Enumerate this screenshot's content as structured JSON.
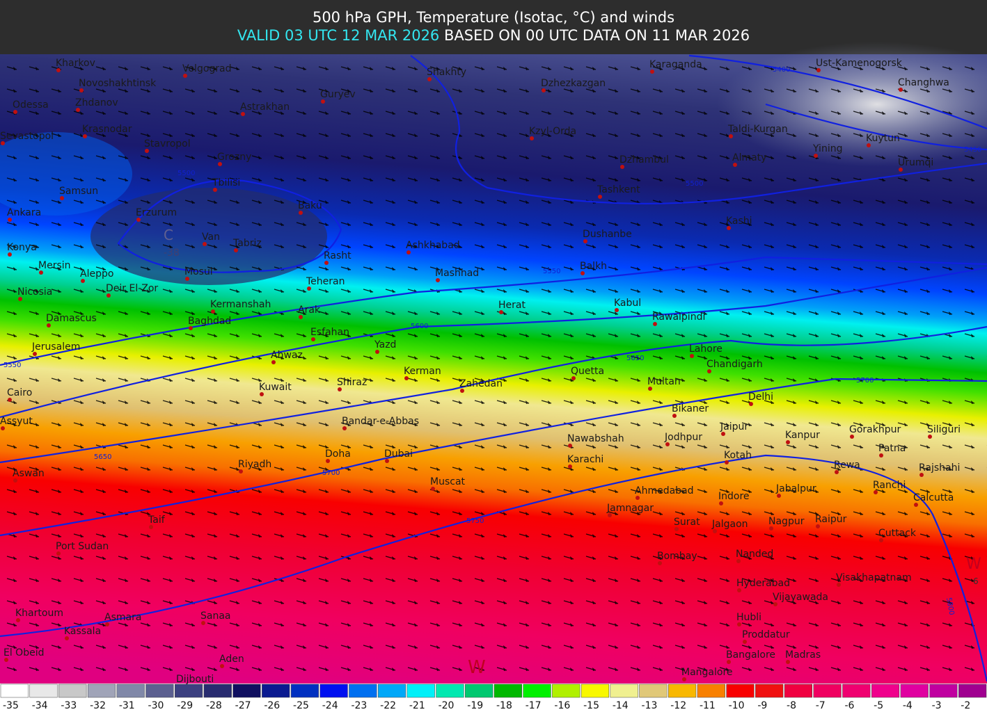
{
  "header": {
    "title": "500 hPa GPH, Temperature (Isotac, °C) and winds",
    "valid": "VALID 03 UTC 12 MAR 2026",
    "based": "BASED ON 00 UTC DATA ON 11 MAR 2026"
  },
  "cities": [
    "Kharkov",
    "Volgograd",
    "Novoshakhtinsk",
    "Zhdanov",
    "Odessa",
    "Krasnodar",
    "Sevastopol",
    "Stavropol",
    "Astrakhan",
    "Grozny",
    "Shakhty",
    "Guryev",
    "Karaganda",
    "Ust-Kamenogorsk",
    "Dzhezkazgan",
    "Changhwa",
    "Kzyl-Orda",
    "Taldi-Kurgan",
    "Yining",
    "Kuytun",
    "Urumqi",
    "Dzhambul",
    "Almaty",
    "Tashkent",
    "Tbilisi",
    "Samsun",
    "Ankara",
    "Erzurum",
    "Baku",
    "Kashi",
    "Konya",
    "Van",
    "Tabriz",
    "Dushanbe",
    "Ashkhabad",
    "Rasht",
    "Mashhad",
    "Mersin",
    "Aleppo",
    "Mosul",
    "Balkh",
    "Deir El-Zor",
    "Teheran",
    "Nicosia",
    "Herat",
    "Kabul",
    "Kermanshah",
    "Arak",
    "Damascus",
    "Baghdad",
    "Rawalpindi",
    "Esfahan",
    "Jerusalem",
    "Yazd",
    "Lahore",
    "Ahwaz",
    "Chandigarh",
    "Kerman",
    "Quetta",
    "Cairo",
    "Kuwait",
    "Shiraz",
    "Zahedan",
    "Multan",
    "Delhi",
    "Bikaner",
    "Assyut",
    "Bandar-e-Abbas",
    "Jaipur",
    "Gorakhpur",
    "Siliguri",
    "Nawabshah",
    "Jodhpur",
    "Kanpur",
    "Patna",
    "Kotah",
    "Riyadh",
    "Doha",
    "Dubai",
    "Karachi",
    "Rewa",
    "Rajshahi",
    "Aswan",
    "Muscat",
    "Ranchi",
    "Ahmedabad",
    "Calcutta",
    "Indore",
    "Jabalpur",
    "Jamnagar",
    "Taif",
    "Surat",
    "Jalgaon",
    "Nagpur",
    "Raipur",
    "Cuttack",
    "Port Sudan",
    "Bombay",
    "Nanded",
    "Visakhapatnam",
    "Hyderabad",
    "Vijayawada",
    "Khartoum",
    "Asmara",
    "Sanaa",
    "Hubli",
    "Kassala",
    "Proddatur",
    "El Obeid",
    "Aden",
    "Bangalore",
    "Madras",
    "Dijbouti",
    "Mangalore"
  ],
  "contour_labels": [
    "5400",
    "5450",
    "5500",
    "5500",
    "5550",
    "5550",
    "5600",
    "5650",
    "5650",
    "5700",
    "5700",
    "5750",
    "5800"
  ],
  "markers": [
    "C",
    "-38",
    "W",
    "6",
    "W"
  ],
  "legend": {
    "labels": [
      "-35",
      "-34",
      "-33",
      "-32",
      "-31",
      "-30",
      "-29",
      "-28",
      "-27",
      "-26",
      "-25",
      "-24",
      "-23",
      "-22",
      "-21",
      "-20",
      "-19",
      "-18",
      "-17",
      "-16",
      "-15",
      "-14",
      "-13",
      "-12",
      "-11",
      "-10",
      "-9",
      "-8",
      "-7",
      "-6",
      "-5",
      "-4",
      "-3",
      "-2"
    ],
    "colors": [
      "#ffffff",
      "#e8e8e8",
      "#c8c8c8",
      "#a0a4b8",
      "#8088a8",
      "#5c6090",
      "#3c4080",
      "#282c70",
      "#101060",
      "#0a1a90",
      "#0030c0",
      "#0010f0",
      "#0070f0",
      "#00a8f8",
      "#00f0f8",
      "#00e8b0",
      "#00c870",
      "#00b800",
      "#00f000",
      "#b0f000",
      "#f8f800",
      "#f0f090",
      "#e0c878",
      "#f8b800",
      "#f88000",
      "#f80000",
      "#f01010",
      "#f00040",
      "#f00060",
      "#f00070",
      "#f0008c",
      "#e000a0",
      "#c000a0",
      "#a00090"
    ]
  }
}
